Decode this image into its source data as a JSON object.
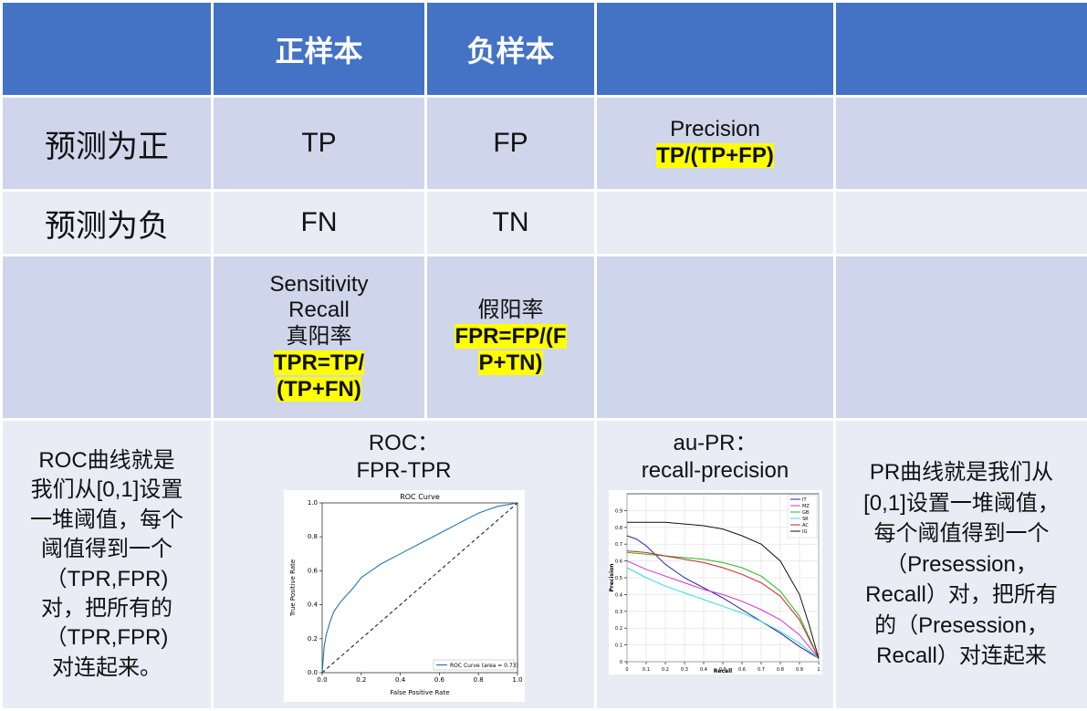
{
  "header": {
    "col_pos": "正样本",
    "col_neg": "负样本"
  },
  "rows": {
    "pred_pos": {
      "label": "预测为正",
      "tp": "TP",
      "fp": "FP",
      "precision_name": "Precision",
      "precision_formula": "TP/(TP+FP)"
    },
    "pred_neg": {
      "label": "预测为负",
      "fn": "FN",
      "tn": "TN"
    }
  },
  "metrics": {
    "sensitivity": "Sensitivity",
    "recall": "Recall",
    "tpr_cn": "真阳率",
    "tpr_formula_1": "TPR=TP/",
    "tpr_formula_2": "(TP+FN)",
    "fpr_cn": "假阳率",
    "fpr_formula_1": "FPR=FP/(F",
    "fpr_formula_2": "P+TN)"
  },
  "roc_text": {
    "lines": [
      "ROC曲线就是",
      "我们从[0,1]设置",
      "一堆阈值，每个",
      "阈值得到一个",
      "（TPR,FPR)",
      "对，把所有的",
      "（TPR,FPR)",
      "对连起来。"
    ]
  },
  "pr_text": {
    "lines": [
      "PR曲线就是我们从",
      "[0,1]设置一堆阈值，",
      "每个阈值得到一个",
      "（Presession，",
      "Recall）对，把所有",
      "的（Presession，",
      "Recall）对连起来"
    ]
  },
  "roc_header": {
    "line1": "ROC：",
    "line2": "FPR-TPR"
  },
  "pr_header": {
    "line1": "au-PR：",
    "line2": "recall-precision"
  },
  "chart_data": [
    {
      "type": "line",
      "title": "ROC Curve",
      "xlabel": "False Positive Rate",
      "ylabel": "True Positive Rate",
      "xlim": [
        0,
        1
      ],
      "ylim": [
        0,
        1
      ],
      "xticks": [
        "0.0",
        "0.2",
        "0.4",
        "0.6",
        "0.8",
        "1.0"
      ],
      "yticks": [
        "0.0",
        "0.2",
        "0.4",
        "0.6",
        "0.8",
        "1.0"
      ],
      "legend": "lower-right",
      "legend_label": "ROC Curve (area = 0.73)",
      "series": [
        {
          "name": "ROC Curve (area = 0.73)",
          "color": "#1f77b4",
          "x": [
            0,
            0.01,
            0.02,
            0.04,
            0.06,
            0.09,
            0.12,
            0.16,
            0.2,
            0.25,
            0.3,
            0.35,
            0.4,
            0.45,
            0.5,
            0.55,
            0.6,
            0.65,
            0.7,
            0.75,
            0.8,
            0.85,
            0.9,
            0.95,
            1.0
          ],
          "y": [
            0,
            0.15,
            0.22,
            0.3,
            0.36,
            0.41,
            0.45,
            0.5,
            0.56,
            0.6,
            0.64,
            0.67,
            0.7,
            0.73,
            0.76,
            0.79,
            0.82,
            0.85,
            0.88,
            0.91,
            0.94,
            0.96,
            0.98,
            0.99,
            1.0
          ]
        },
        {
          "name": "",
          "color": "#222222",
          "dash": true,
          "x": [
            0,
            1
          ],
          "y": [
            0,
            1
          ]
        }
      ]
    },
    {
      "type": "line",
      "xlabel": "Recall",
      "ylabel": "Precision",
      "xlim": [
        0,
        1
      ],
      "ylim": [
        0,
        1
      ],
      "xticks": [
        "0",
        "0.1",
        "0.2",
        "0.3",
        "0.4",
        "0.5",
        "0.6",
        "0.7",
        "0.8",
        "0.9",
        "1"
      ],
      "yticks": [
        "0",
        "0.1",
        "0.2",
        "0.3",
        "0.4",
        "0.5",
        "0.6",
        "0.7",
        "0.8",
        "0.9"
      ],
      "legend": "top-right",
      "series": [
        {
          "name": "IT",
          "color": "#1f1f9f",
          "x": [
            0,
            0.05,
            0.1,
            0.2,
            0.3,
            0.4,
            0.5,
            0.6,
            0.7,
            0.8,
            0.9,
            1.0
          ],
          "y": [
            0.75,
            0.73,
            0.69,
            0.58,
            0.5,
            0.44,
            0.38,
            0.31,
            0.24,
            0.17,
            0.09,
            0.02
          ]
        },
        {
          "name": "MZ",
          "color": "#cc33cc",
          "x": [
            0,
            0.1,
            0.2,
            0.3,
            0.4,
            0.5,
            0.6,
            0.7,
            0.8,
            0.9,
            1.0
          ],
          "y": [
            0.6,
            0.55,
            0.51,
            0.47,
            0.43,
            0.4,
            0.36,
            0.31,
            0.25,
            0.16,
            0.02
          ]
        },
        {
          "name": "GB",
          "color": "#22bb22",
          "x": [
            0,
            0.1,
            0.2,
            0.3,
            0.4,
            0.5,
            0.6,
            0.7,
            0.8,
            0.9,
            1.0
          ],
          "y": [
            0.65,
            0.64,
            0.63,
            0.62,
            0.61,
            0.59,
            0.56,
            0.51,
            0.42,
            0.27,
            0.02
          ]
        },
        {
          "name": "SR",
          "color": "#33dddd",
          "x": [
            0,
            0.1,
            0.2,
            0.3,
            0.4,
            0.5,
            0.6,
            0.7,
            0.8,
            0.9,
            1.0
          ],
          "y": [
            0.56,
            0.5,
            0.45,
            0.41,
            0.37,
            0.33,
            0.29,
            0.24,
            0.18,
            0.11,
            0.02
          ]
        },
        {
          "name": "AC",
          "color": "#cc2222",
          "x": [
            0,
            0.1,
            0.2,
            0.3,
            0.4,
            0.5,
            0.6,
            0.7,
            0.8,
            0.9,
            1.0
          ],
          "y": [
            0.66,
            0.65,
            0.63,
            0.61,
            0.59,
            0.56,
            0.52,
            0.47,
            0.39,
            0.25,
            0.02
          ]
        },
        {
          "name": "IG",
          "color": "#111111",
          "x": [
            0,
            0.1,
            0.2,
            0.3,
            0.4,
            0.5,
            0.6,
            0.7,
            0.8,
            0.9,
            0.95,
            1.0
          ],
          "y": [
            0.83,
            0.83,
            0.83,
            0.82,
            0.81,
            0.79,
            0.75,
            0.7,
            0.6,
            0.4,
            0.22,
            0.02
          ]
        }
      ]
    }
  ]
}
